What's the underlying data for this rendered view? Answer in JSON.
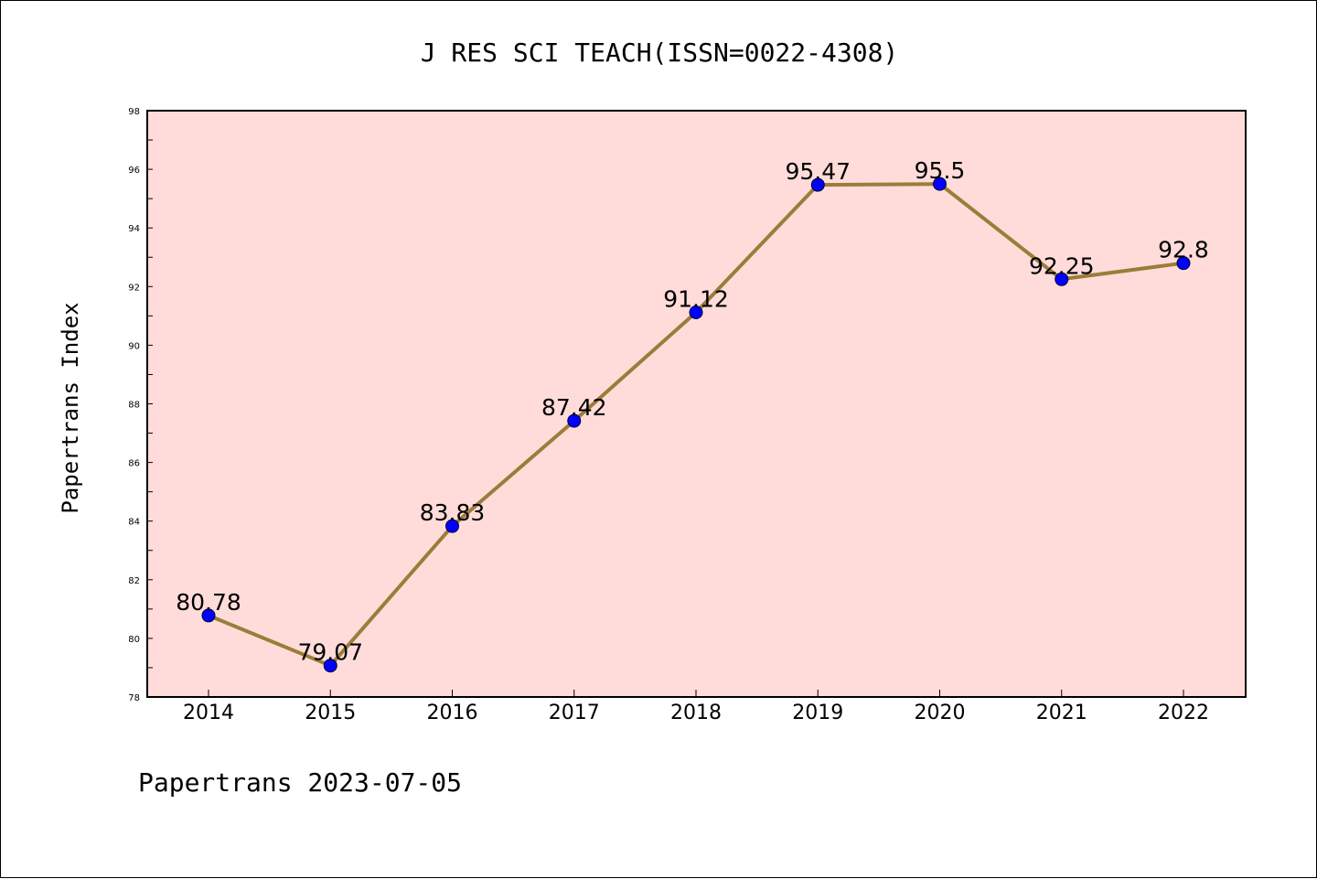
{
  "chart_data": {
    "type": "line",
    "title": "J RES SCI TEACH(ISSN=0022-4308)",
    "xlabel": "",
    "ylabel": "Papertrans Index",
    "categories": [
      "2014",
      "2015",
      "2016",
      "2017",
      "2018",
      "2019",
      "2020",
      "2021",
      "2022"
    ],
    "series": [
      {
        "values": [
          80.78,
          79.07,
          83.83,
          87.42,
          91.12,
          95.47,
          95.5,
          92.25,
          92.8
        ],
        "data_labels": [
          "80.78",
          "79.07",
          "83.83",
          "87.42",
          "91.12",
          "95.47",
          "95.5",
          "92.25",
          "92.8"
        ]
      }
    ],
    "ylim": [
      78,
      98
    ],
    "yticks": [
      "78",
      "80",
      "82",
      "84",
      "86",
      "88",
      "90",
      "92",
      "94",
      "96",
      "98"
    ],
    "grid": false,
    "legend": "none",
    "footer": "Papertrans 2023-07-05",
    "colors": {
      "plot_background": "#ffdcda",
      "line": "#9b7d3a",
      "marker": "#0000ff"
    }
  }
}
